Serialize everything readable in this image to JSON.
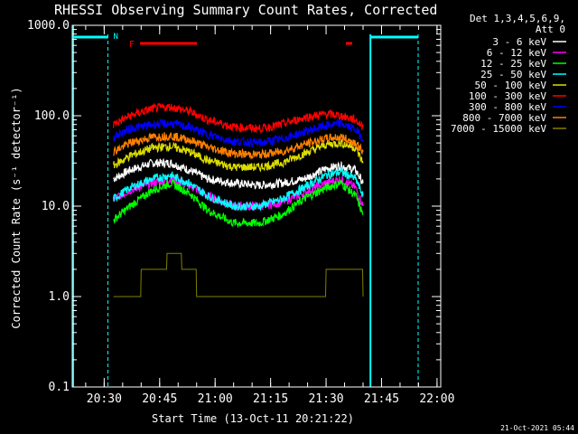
{
  "chart_data": {
    "type": "line",
    "title": "RHESSI Observing Summary Count Rates, Corrected",
    "xlabel": "Start Time (13-Oct-11 20:21:22)",
    "ylabel": "Corrected Count Rate (s⁻¹ detector⁻¹)",
    "y_scale": "log",
    "ylim": [
      0.1,
      1000
    ],
    "xlim": [
      "20:21:22",
      "22:01:00"
    ],
    "x_ticks": [
      "20:30",
      "20:45",
      "21:00",
      "21:15",
      "21:30",
      "21:45",
      "22:00"
    ],
    "y_ticks": [
      "0.1",
      "1.0",
      "10.0",
      "100.0",
      "1000.0"
    ],
    "legend_header": [
      "Det 1,3,4,5,6,9,",
      "Att 0"
    ],
    "legend_position": "right, outside plot",
    "timestamp": "21-Oct-2021 05:44",
    "flags": {
      "saa_label": "N",
      "flare_label": "F"
    },
    "series": [
      {
        "name": "3 - 6 keV",
        "color": "#ffffff",
        "x": [
          "20:32:30",
          "20:37",
          "20:43",
          "20:48",
          "20:53",
          "20:58",
          "21:05",
          "21:12",
          "21:18",
          "21:24",
          "21:30",
          "21:34",
          "21:38",
          "21:40"
        ],
        "values": [
          20,
          25,
          30,
          30,
          25,
          20,
          18,
          17,
          18,
          20,
          26,
          28,
          25,
          18
        ]
      },
      {
        "name": "6 - 12 keV",
        "color": "#ff00ff",
        "x": [
          "20:32:30",
          "20:37",
          "20:43",
          "20:48",
          "20:53",
          "20:58",
          "21:05",
          "21:12",
          "21:18",
          "21:24",
          "21:30",
          "21:34",
          "21:38",
          "21:40"
        ],
        "values": [
          12,
          15,
          18,
          20,
          17,
          13,
          10,
          10,
          11,
          14,
          18,
          20,
          16,
          10
        ]
      },
      {
        "name": "12 - 25 keV",
        "color": "#00ff00",
        "x": [
          "20:32:30",
          "20:37",
          "20:43",
          "20:48",
          "20:53",
          "20:58",
          "21:05",
          "21:12",
          "21:18",
          "21:24",
          "21:30",
          "21:34",
          "21:38",
          "21:40"
        ],
        "values": [
          7,
          10,
          15,
          18,
          14,
          9,
          6.5,
          6.5,
          8,
          12,
          16,
          18,
          13,
          8
        ]
      },
      {
        "name": "25 - 50 keV",
        "color": "#00ffff",
        "x": [
          "20:32:30",
          "20:37",
          "20:43",
          "20:48",
          "20:53",
          "20:58",
          "21:05",
          "21:12",
          "21:18",
          "21:24",
          "21:30",
          "21:34",
          "21:38",
          "21:40"
        ],
        "values": [
          12,
          16,
          20,
          22,
          18,
          13,
          10,
          10,
          12,
          16,
          22,
          24,
          20,
          13
        ]
      },
      {
        "name": "50 - 100 keV",
        "color": "#dddd00",
        "x": [
          "20:32:30",
          "20:37",
          "20:43",
          "20:48",
          "20:53",
          "20:58",
          "21:05",
          "21:12",
          "21:18",
          "21:24",
          "21:30",
          "21:34",
          "21:38",
          "21:40"
        ],
        "values": [
          28,
          36,
          44,
          46,
          40,
          32,
          27,
          27,
          30,
          38,
          48,
          50,
          44,
          30
        ]
      },
      {
        "name": "100 - 300 keV",
        "color": "#ff0000",
        "x": [
          "20:32:30",
          "20:37",
          "20:43",
          "20:48",
          "20:53",
          "20:58",
          "21:05",
          "21:12",
          "21:18",
          "21:24",
          "21:30",
          "21:34",
          "21:38",
          "21:40"
        ],
        "values": [
          80,
          100,
          120,
          125,
          112,
          90,
          75,
          72,
          80,
          95,
          105,
          100,
          90,
          75
        ]
      },
      {
        "name": "300 - 800 keV",
        "color": "#0000ff",
        "x": [
          "20:32:30",
          "20:37",
          "20:43",
          "20:48",
          "20:53",
          "20:58",
          "21:05",
          "21:12",
          "21:18",
          "21:24",
          "21:30",
          "21:34",
          "21:38",
          "21:40"
        ],
        "values": [
          58,
          72,
          80,
          82,
          75,
          62,
          52,
          50,
          55,
          66,
          78,
          82,
          70,
          55
        ]
      },
      {
        "name": "800 - 7000 keV",
        "color": "#ff8000",
        "x": [
          "20:32:30",
          "20:37",
          "20:43",
          "20:48",
          "20:53",
          "20:58",
          "21:05",
          "21:12",
          "21:18",
          "21:24",
          "21:30",
          "21:34",
          "21:38",
          "21:40"
        ],
        "values": [
          40,
          50,
          58,
          60,
          54,
          45,
          38,
          37,
          40,
          48,
          56,
          58,
          50,
          40
        ]
      },
      {
        "name": "7000 - 15000 keV",
        "color": "#808000",
        "x": [
          "20:32:30",
          "20:37",
          "20:40",
          "20:42",
          "20:47",
          "20:51",
          "20:53",
          "20:55",
          "21:27",
          "21:30",
          "21:34",
          "21:38",
          "21:40"
        ],
        "values": [
          1,
          1,
          2,
          2,
          3,
          2,
          2,
          1,
          1,
          2,
          2,
          2,
          1
        ]
      }
    ]
  }
}
